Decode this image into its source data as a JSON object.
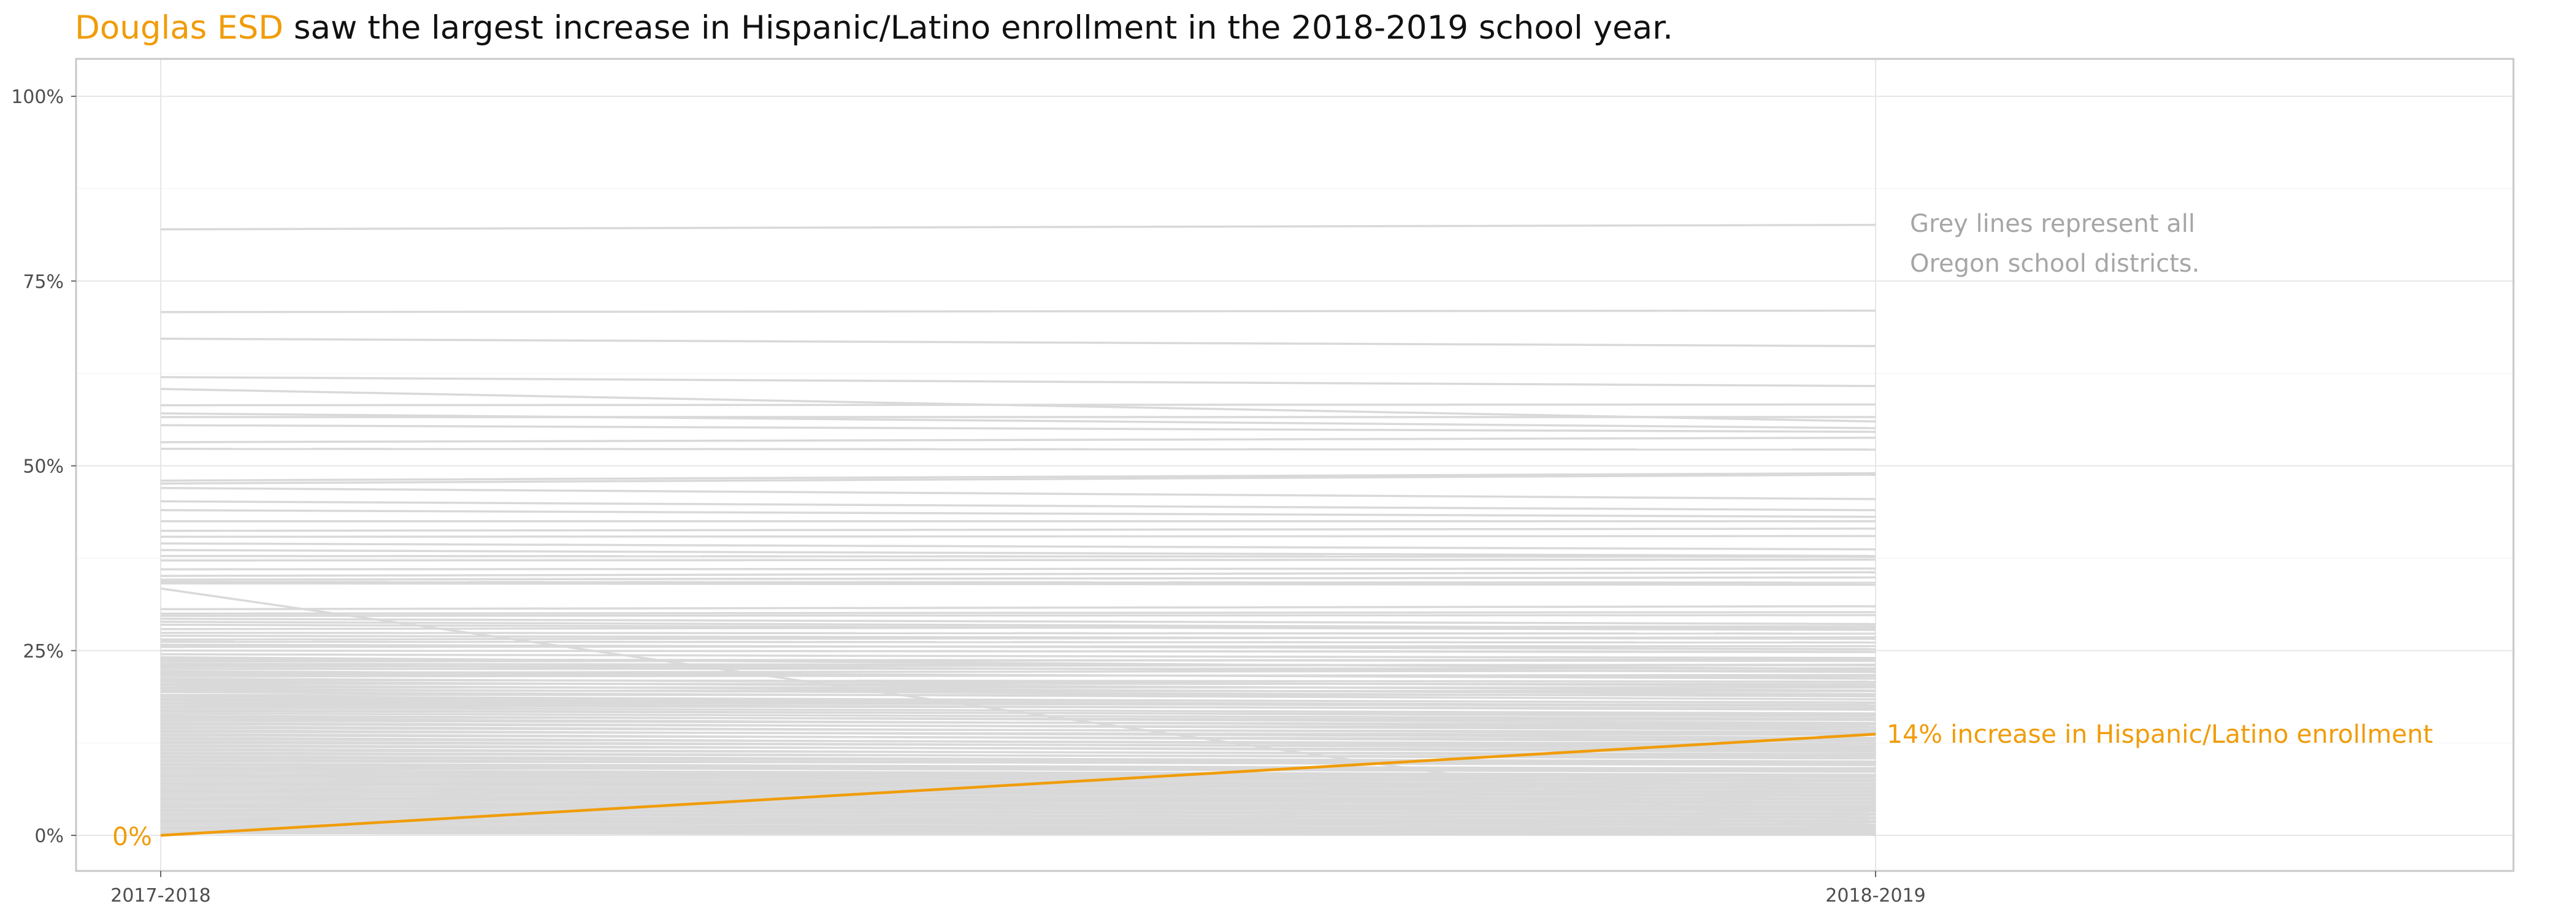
{
  "title": {
    "highlight": "Douglas ESD",
    "rest": " saw the largest increase in Hispanic/Latino enrollment in the 2018-2019 school year."
  },
  "colors": {
    "highlight": "#f09c09",
    "grey_lines": "#d9d9d9",
    "grid": "#e6e6e6",
    "frame": "#c8c8c8",
    "note_text": "#a6a6a6"
  },
  "chart_data": {
    "type": "line",
    "categories": [
      "2017-2018",
      "2018-2019"
    ],
    "ylim": [
      0,
      1
    ],
    "yticks": [
      0,
      0.25,
      0.5,
      0.75,
      1.0
    ],
    "ytick_labels": [
      "0%",
      "25%",
      "50%",
      "75%",
      "100%"
    ],
    "grid": true,
    "highlight_series": {
      "name": "Douglas ESD",
      "values": [
        0,
        0.137
      ],
      "start_label": "0%",
      "end_label": "14% increase in Hispanic/Latino enrollment"
    },
    "annotation": {
      "lines": [
        "Grey lines represent all",
        "Oregon school districts."
      ]
    },
    "background_series": [
      [
        0.82,
        0.826
      ],
      [
        0.708,
        0.71
      ],
      [
        0.672,
        0.662
      ],
      [
        0.62,
        0.608
      ],
      [
        0.604,
        0.56
      ],
      [
        0.582,
        0.583
      ],
      [
        0.571,
        0.551
      ],
      [
        0.566,
        0.566
      ],
      [
        0.555,
        0.546
      ],
      [
        0.532,
        0.538
      ],
      [
        0.523,
        0.522
      ],
      [
        0.48,
        0.49
      ],
      [
        0.476,
        0.488
      ],
      [
        0.47,
        0.455
      ],
      [
        0.452,
        0.44
      ],
      [
        0.44,
        0.431
      ],
      [
        0.425,
        0.425
      ],
      [
        0.412,
        0.415
      ],
      [
        0.404,
        0.405
      ],
      [
        0.395,
        0.387
      ],
      [
        0.386,
        0.378
      ],
      [
        0.378,
        0.377
      ],
      [
        0.372,
        0.373
      ],
      [
        0.36,
        0.361
      ],
      [
        0.351,
        0.356
      ],
      [
        0.346,
        0.349
      ],
      [
        0.343,
        0.342
      ],
      [
        0.341,
        0.339
      ],
      [
        0.334,
        0.0
      ],
      [
        0.306,
        0.31
      ],
      [
        0.3,
        0.302
      ],
      [
        0.297,
        0.298
      ],
      [
        0.293,
        0.286
      ],
      [
        0.289,
        0.28
      ],
      [
        0.285,
        0.278
      ],
      [
        0.279,
        0.283
      ],
      [
        0.274,
        0.273
      ],
      [
        0.27,
        0.266
      ],
      [
        0.265,
        0.268
      ],
      [
        0.262,
        0.261
      ],
      [
        0.258,
        0.252
      ],
      [
        0.255,
        0.256
      ],
      [
        0.25,
        0.248
      ],
      [
        0.245,
        0.24
      ],
      [
        0.241,
        0.225
      ],
      [
        0.238,
        0.236
      ],
      [
        0.235,
        0.238
      ],
      [
        0.232,
        0.23
      ],
      [
        0.23,
        0.221
      ],
      [
        0.228,
        0.231
      ],
      [
        0.225,
        0.226
      ],
      [
        0.222,
        0.212
      ],
      [
        0.22,
        0.223
      ],
      [
        0.218,
        0.215
      ],
      [
        0.215,
        0.217
      ],
      [
        0.212,
        0.202
      ],
      [
        0.21,
        0.208
      ],
      [
        0.208,
        0.196
      ],
      [
        0.205,
        0.205
      ],
      [
        0.203,
        0.191
      ],
      [
        0.2,
        0.2
      ],
      [
        0.198,
        0.188
      ],
      [
        0.196,
        0.195
      ],
      [
        0.194,
        0.184
      ],
      [
        0.19,
        0.19
      ],
      [
        0.188,
        0.179
      ],
      [
        0.185,
        0.18
      ],
      [
        0.183,
        0.176
      ],
      [
        0.18,
        0.175
      ],
      [
        0.178,
        0.17
      ],
      [
        0.175,
        0.172
      ],
      [
        0.173,
        0.165
      ],
      [
        0.17,
        0.161
      ],
      [
        0.168,
        0.163
      ],
      [
        0.165,
        0.158
      ],
      [
        0.162,
        0.152
      ],
      [
        0.16,
        0.156
      ],
      [
        0.158,
        0.147
      ],
      [
        0.155,
        0.15
      ],
      [
        0.152,
        0.143
      ],
      [
        0.15,
        0.146
      ],
      [
        0.147,
        0.138
      ],
      [
        0.145,
        0.14
      ],
      [
        0.142,
        0.132
      ],
      [
        0.14,
        0.136
      ],
      [
        0.137,
        0.127
      ],
      [
        0.135,
        0.13
      ],
      [
        0.132,
        0.121
      ],
      [
        0.13,
        0.124
      ],
      [
        0.127,
        0.118
      ],
      [
        0.125,
        0.12
      ],
      [
        0.122,
        0.113
      ],
      [
        0.12,
        0.116
      ],
      [
        0.117,
        0.108
      ],
      [
        0.115,
        0.11
      ],
      [
        0.112,
        0.104
      ],
      [
        0.11,
        0.106
      ],
      [
        0.107,
        0.1
      ],
      [
        0.105,
        0.098
      ],
      [
        0.102,
        0.095
      ],
      [
        0.1,
        0.097
      ],
      [
        0.097,
        0.09
      ],
      [
        0.095,
        0.088
      ],
      [
        0.092,
        0.086
      ],
      [
        0.09,
        0.091
      ],
      [
        0.088,
        0.082
      ],
      [
        0.085,
        0.08
      ],
      [
        0.082,
        0.078
      ],
      [
        0.08,
        0.075
      ],
      [
        0.078,
        0.073
      ],
      [
        0.075,
        0.07
      ],
      [
        0.072,
        0.068
      ],
      [
        0.07,
        0.065
      ],
      [
        0.068,
        0.063
      ],
      [
        0.065,
        0.06
      ],
      [
        0.062,
        0.058
      ],
      [
        0.06,
        0.055
      ],
      [
        0.058,
        0.053
      ],
      [
        0.055,
        0.05
      ],
      [
        0.052,
        0.048
      ],
      [
        0.05,
        0.045
      ],
      [
        0.048,
        0.043
      ],
      [
        0.045,
        0.04
      ],
      [
        0.042,
        0.038
      ],
      [
        0.04,
        0.035
      ],
      [
        0.038,
        0.033
      ],
      [
        0.035,
        0.03
      ],
      [
        0.033,
        0.028
      ],
      [
        0.03,
        0.025
      ],
      [
        0.028,
        0.023
      ],
      [
        0.025,
        0.02
      ],
      [
        0.022,
        0.018
      ],
      [
        0.02,
        0.015
      ],
      [
        0.018,
        0.013
      ],
      [
        0.015,
        0.01
      ],
      [
        0.012,
        0.008
      ],
      [
        0.01,
        0.006
      ],
      [
        0.008,
        0.004
      ],
      [
        0.005,
        0.002
      ],
      [
        0.003,
        0.001
      ]
    ]
  }
}
